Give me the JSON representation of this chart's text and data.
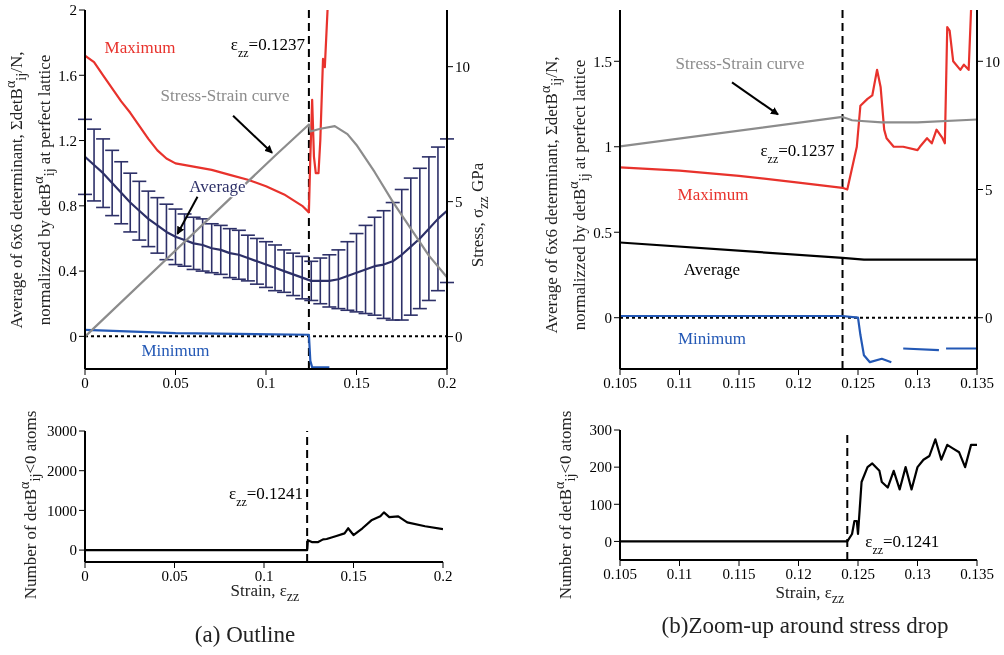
{
  "chart_data": [
    {
      "type": "line",
      "ylabel": "Average of 6x6 determinant, ΣdetB$^{α}$$_{ij}$/N,\nnormalizzed by detB$^{α}$$_{ij}$ at perfect lattice",
      "y2label": "Stress, σ$_{zz}$  GPa",
      "xlim": [
        0,
        0.2
      ],
      "xticks": [
        0,
        0.05,
        0.1,
        0.15,
        0.2
      ],
      "ylim": [
        -0.2,
        2
      ],
      "yticks": [
        0,
        0.4,
        0.8,
        1.2,
        1.6,
        2
      ],
      "y2lim": [
        -1.2,
        12.1
      ],
      "y2ticks": [
        0,
        5,
        10
      ],
      "ref_lines": [
        {
          "axis": "x",
          "value": 0.1237,
          "label": "ε$_{zz}$=0.1237",
          "line_style": "dashed",
          "color": "#000000"
        },
        {
          "axis": "y",
          "value": 0,
          "line_style": "dotted",
          "color": "#000000"
        }
      ],
      "series": [
        {
          "name": "Maximum",
          "color": "#e8322c",
          "x": [
            0,
            0.005,
            0.01,
            0.015,
            0.02,
            0.025,
            0.03,
            0.035,
            0.04,
            0.045,
            0.05,
            0.06,
            0.07,
            0.08,
            0.09,
            0.1,
            0.11,
            0.12,
            0.1237,
            0.1245,
            0.1255,
            0.1265,
            0.1275,
            0.129,
            0.13,
            0.1315,
            0.1325,
            0.134
          ],
          "values": [
            1.72,
            1.68,
            1.6,
            1.52,
            1.44,
            1.37,
            1.29,
            1.21,
            1.14,
            1.09,
            1.06,
            1.04,
            1.02,
            0.99,
            0.96,
            0.92,
            0.87,
            0.8,
            0.76,
            1.1,
            1.45,
            1.1,
            1.0,
            1.0,
            1.2,
            1.7,
            1.65,
            2.0
          ]
        },
        {
          "name": "Average",
          "color": "#2d3068",
          "x": [
            0,
            0.005,
            0.01,
            0.015,
            0.02,
            0.025,
            0.03,
            0.035,
            0.04,
            0.045,
            0.05,
            0.055,
            0.06,
            0.065,
            0.07,
            0.075,
            0.08,
            0.085,
            0.09,
            0.095,
            0.1,
            0.105,
            0.11,
            0.115,
            0.12,
            0.125,
            0.13,
            0.135,
            0.14,
            0.145,
            0.15,
            0.155,
            0.16,
            0.165,
            0.17,
            0.175,
            0.18,
            0.185,
            0.19,
            0.195,
            0.2
          ],
          "values": [
            1.1,
            1.05,
            1.0,
            0.94,
            0.88,
            0.82,
            0.77,
            0.72,
            0.68,
            0.64,
            0.61,
            0.59,
            0.57,
            0.56,
            0.54,
            0.53,
            0.51,
            0.5,
            0.48,
            0.46,
            0.44,
            0.42,
            0.4,
            0.38,
            0.36,
            0.34,
            0.34,
            0.34,
            0.35,
            0.37,
            0.39,
            0.41,
            0.43,
            0.44,
            0.46,
            0.5,
            0.55,
            0.6,
            0.66,
            0.72,
            0.77
          ],
          "errors": [
            0.23,
            0.22,
            0.21,
            0.2,
            0.19,
            0.18,
            0.18,
            0.17,
            0.17,
            0.17,
            0.17,
            0.16,
            0.16,
            0.16,
            0.15,
            0.15,
            0.15,
            0.15,
            0.14,
            0.14,
            0.14,
            0.14,
            0.13,
            0.13,
            0.13,
            0.12,
            0.14,
            0.16,
            0.18,
            0.21,
            0.24,
            0.27,
            0.3,
            0.33,
            0.36,
            0.4,
            0.42,
            0.43,
            0.44,
            0.44,
            0.44
          ]
        },
        {
          "name": "Minimum",
          "color": "#2358b5",
          "x": [
            0,
            0.05,
            0.1237,
            0.1245,
            0.1255,
            0.13,
            0.135
          ],
          "values": [
            0.04,
            0.02,
            0.01,
            -0.15,
            -0.19,
            -0.19,
            -0.19
          ]
        },
        {
          "name": "Stress-Strain curve",
          "color": "#8c8c8c",
          "axis": "y2",
          "x": [
            0,
            0.105,
            0.1237,
            0.1245,
            0.13,
            0.138,
            0.145,
            0.15,
            0.16,
            0.17,
            0.18,
            0.19,
            0.2
          ],
          "values": [
            0,
            6.7,
            7.86,
            7.6,
            7.7,
            7.8,
            7.5,
            7.1,
            6.1,
            5.0,
            4.0,
            3.0,
            2.2
          ]
        }
      ]
    },
    {
      "type": "line",
      "ylabel": "Average of 6x6 determinant, ΣdetB$^{α}$$_{ij}$/N,\nnormalizzed by detB$^{α}$$_{ij}$ at perfect lattice",
      "xlim": [
        0.105,
        0.135
      ],
      "xticks": [
        0.105,
        0.11,
        0.115,
        0.12,
        0.125,
        0.13,
        0.135
      ],
      "ylim": [
        -0.3,
        1.8
      ],
      "yticks": [
        0,
        0.5,
        1,
        1.5
      ],
      "y2lim": [
        -2,
        12
      ],
      "y2ticks": [
        0,
        5,
        10
      ],
      "ref_lines": [
        {
          "axis": "x",
          "value": 0.1237,
          "label": "ε$_{zz}$=0.1237",
          "line_style": "dashed",
          "color": "#000000"
        },
        {
          "axis": "y",
          "value": 0,
          "line_style": "dotted",
          "color": "#000000"
        }
      ],
      "series": [
        {
          "name": "Maximum",
          "color": "#e8322c",
          "x": [
            0.105,
            0.11,
            0.115,
            0.12,
            0.1237,
            0.1241,
            0.1249,
            0.1252,
            0.1258,
            0.1262,
            0.1266,
            0.1269,
            0.1272,
            0.1274,
            0.128,
            0.1288,
            0.13,
            0.1302,
            0.1308,
            0.1312,
            0.1316,
            0.1321,
            0.1323,
            0.1325,
            0.1327,
            0.133,
            0.1336,
            0.1339,
            0.1343,
            0.1345
          ],
          "values": [
            0.88,
            0.86,
            0.83,
            0.79,
            0.76,
            0.75,
            1.0,
            1.24,
            1.28,
            1.3,
            1.45,
            1.35,
            1.1,
            1.05,
            1.0,
            1.0,
            0.98,
            1.0,
            1.05,
            1.02,
            1.1,
            1.05,
            1.02,
            1.7,
            1.68,
            1.5,
            1.45,
            1.48,
            1.45,
            1.8
          ]
        },
        {
          "name": "Average",
          "color": "#000000",
          "x": [
            0.105,
            0.1237,
            0.1255,
            0.135
          ],
          "values": [
            0.44,
            0.35,
            0.34,
            0.34
          ]
        },
        {
          "name": "Minimum",
          "color": "#2358b5",
          "x": [
            0.105,
            0.1237,
            0.125,
            0.1252,
            0.1255,
            0.126,
            0.127,
            0.1278,
            0.128,
            0.1283,
            0.1287,
            0.1288,
            0.1318,
            0.1319,
            0.1321,
            0.1323,
            0.1324,
            0.135
          ],
          "values": [
            0.01,
            0.01,
            0.0,
            -0.1,
            -0.22,
            -0.26,
            -0.24,
            -0.26,
            null,
            null,
            null,
            -0.18,
            -0.19,
            null,
            null,
            null,
            -0.18,
            -0.18
          ]
        },
        {
          "name": "Stress-Strain curve",
          "color": "#8c8c8c",
          "axis": "y2",
          "x": [
            0.105,
            0.1237,
            0.1245,
            0.125,
            0.127,
            0.13,
            0.135
          ],
          "values": [
            6.68,
            7.83,
            7.7,
            7.68,
            7.62,
            7.62,
            7.73
          ]
        }
      ]
    },
    {
      "type": "line",
      "ylabel": "Number of detB$^{α}$$_{ij}$<0 atoms",
      "xlabel": "Strain, ε$_{zz}$",
      "annotations": [
        "(a) Outline"
      ],
      "xlim": [
        0,
        0.2
      ],
      "xticks": [
        0,
        0.05,
        0.1,
        0.15,
        0.2
      ],
      "ylim": [
        -300,
        3000
      ],
      "yticks": [
        0,
        1000,
        2000,
        3000
      ],
      "ref_lines": [
        {
          "axis": "x",
          "value": 0.1241,
          "label": "ε$_{zz}$=0.1241",
          "line_style": "dashed",
          "color": "#000000"
        }
      ],
      "series": [
        {
          "color": "#000000",
          "x": [
            0,
            0.1241,
            0.1245,
            0.127,
            0.13,
            0.133,
            0.135,
            0.14,
            0.145,
            0.147,
            0.15,
            0.155,
            0.16,
            0.165,
            0.167,
            0.17,
            0.175,
            0.18,
            0.19,
            0.2
          ],
          "values": [
            0,
            0,
            250,
            200,
            200,
            270,
            280,
            350,
            420,
            550,
            380,
            550,
            750,
            850,
            950,
            830,
            850,
            700,
            600,
            530
          ]
        }
      ]
    },
    {
      "type": "line",
      "ylabel": "Number of detB$^{α}$$_{ij}$<0 atoms",
      "xlabel": "Strain, ε$_{zz}$",
      "annotations": [
        "(b)Zoom-up around stress drop"
      ],
      "xlim": [
        0.105,
        0.135
      ],
      "xticks": [
        0.105,
        0.11,
        0.115,
        0.12,
        0.125,
        0.13,
        0.135
      ],
      "ylim": [
        -50,
        300
      ],
      "yticks": [
        0,
        100,
        200,
        300
      ],
      "ref_lines": [
        {
          "axis": "x",
          "value": 0.1241,
          "label": "ε$_{zz}$=0.1241",
          "line_style": "dashed",
          "color": "#000000"
        }
      ],
      "series": [
        {
          "color": "#000000",
          "x": [
            0.105,
            0.1241,
            0.1245,
            0.1247,
            0.1249,
            0.125,
            0.1253,
            0.1258,
            0.1262,
            0.1268,
            0.127,
            0.1275,
            0.128,
            0.1285,
            0.129,
            0.1295,
            0.13,
            0.1305,
            0.131,
            0.1315,
            0.132,
            0.1325,
            0.133,
            0.1335,
            0.134,
            0.1345,
            0.135
          ],
          "values": [
            0,
            0,
            20,
            55,
            55,
            20,
            160,
            200,
            210,
            190,
            160,
            145,
            190,
            140,
            200,
            140,
            200,
            220,
            230,
            275,
            220,
            260,
            250,
            240,
            200,
            260,
            260
          ]
        }
      ]
    }
  ]
}
